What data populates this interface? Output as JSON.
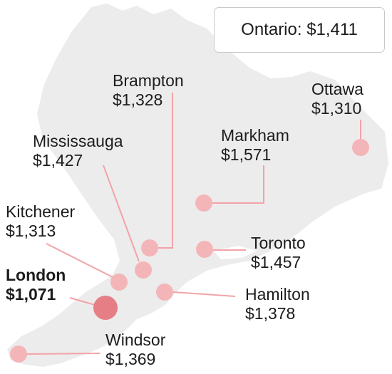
{
  "summary": {
    "text": "Ontario: $1,411"
  },
  "colors": {
    "map_fill": "#ececec",
    "dot_fill": "#f4b5b9",
    "dot_highlight": "#e57f85",
    "leader_line": "#f2a3a8"
  },
  "cities": [
    {
      "name": "Brampton",
      "rent": "$1,328",
      "highlight": false
    },
    {
      "name": "Ottawa",
      "rent": "$1,310",
      "highlight": false
    },
    {
      "name": "Mississauga",
      "rent": "$1,427",
      "highlight": false
    },
    {
      "name": "Markham",
      "rent": "$1,571",
      "highlight": false
    },
    {
      "name": "Kitchener",
      "rent": "$1,313",
      "highlight": false
    },
    {
      "name": "Toronto",
      "rent": "$1,457",
      "highlight": false
    },
    {
      "name": "London",
      "rent": "$1,071",
      "highlight": true
    },
    {
      "name": "Hamilton",
      "rent": "$1,378",
      "highlight": false
    },
    {
      "name": "Windsor",
      "rent": "$1,369",
      "highlight": false
    }
  ]
}
